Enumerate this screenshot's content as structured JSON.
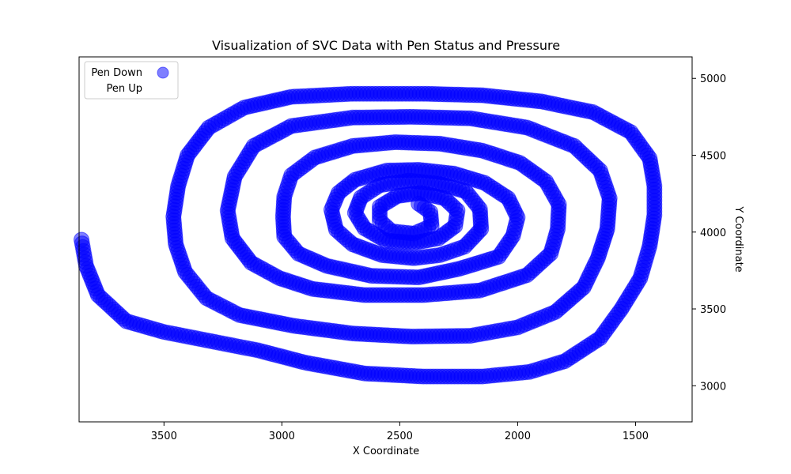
{
  "chart_data": {
    "type": "scatter",
    "title": "Visualization of SVC Data with Pen Status and Pressure",
    "xlabel": "X Coordinate",
    "ylabel": "Y Coordinate",
    "x_axis_inverted": true,
    "y_axis_position": "right",
    "xlim": [
      3860,
      1260
    ],
    "ylim": [
      2765,
      5140
    ],
    "x_ticks": [
      {
        "value": 3500,
        "label": "3500"
      },
      {
        "value": 3000,
        "label": "3000"
      },
      {
        "value": 2500,
        "label": "2500"
      },
      {
        "value": 2000,
        "label": "2000"
      },
      {
        "value": 1500,
        "label": "1500"
      }
    ],
    "y_ticks": [
      {
        "value": 3000,
        "label": "3000"
      },
      {
        "value": 3500,
        "label": "3500"
      },
      {
        "value": 4000,
        "label": "4000"
      },
      {
        "value": 4500,
        "label": "4500"
      },
      {
        "value": 5000,
        "label": "5000"
      }
    ],
    "legend": {
      "placement": "top-left",
      "entries": [
        {
          "label": "Pen Down",
          "color": "#0000ff",
          "marker": "circle"
        },
        {
          "label": "Pen Up",
          "color": "#ff0000",
          "marker": "circle"
        }
      ]
    },
    "series": [
      {
        "name": "Pen Down",
        "color": "#0000ff",
        "trajectory": [
          [
            2420,
            4185
          ],
          [
            2370,
            4130
          ],
          [
            2365,
            4040
          ],
          [
            2440,
            3990
          ],
          [
            2535,
            4005
          ],
          [
            2585,
            4075
          ],
          [
            2585,
            4165
          ],
          [
            2510,
            4235
          ],
          [
            2410,
            4255
          ],
          [
            2310,
            4220
          ],
          [
            2255,
            4140
          ],
          [
            2265,
            4040
          ],
          [
            2335,
            3960
          ],
          [
            2440,
            3930
          ],
          [
            2560,
            3945
          ],
          [
            2650,
            4025
          ],
          [
            2690,
            4125
          ],
          [
            2665,
            4225
          ],
          [
            2585,
            4305
          ],
          [
            2460,
            4335
          ],
          [
            2335,
            4315
          ],
          [
            2220,
            4265
          ],
          [
            2160,
            4150
          ],
          [
            2155,
            4020
          ],
          [
            2225,
            3905
          ],
          [
            2330,
            3850
          ],
          [
            2440,
            3830
          ],
          [
            2575,
            3850
          ],
          [
            2700,
            3920
          ],
          [
            2770,
            4015
          ],
          [
            2790,
            4145
          ],
          [
            2760,
            4255
          ],
          [
            2690,
            4340
          ],
          [
            2555,
            4400
          ],
          [
            2420,
            4405
          ],
          [
            2270,
            4380
          ],
          [
            2140,
            4320
          ],
          [
            2040,
            4220
          ],
          [
            2000,
            4095
          ],
          [
            2020,
            3975
          ],
          [
            2080,
            3840
          ],
          [
            2250,
            3760
          ],
          [
            2420,
            3705
          ],
          [
            2620,
            3715
          ],
          [
            2810,
            3780
          ],
          [
            2930,
            3860
          ],
          [
            2990,
            3970
          ],
          [
            2995,
            4100
          ],
          [
            2990,
            4230
          ],
          [
            2960,
            4370
          ],
          [
            2860,
            4485
          ],
          [
            2700,
            4560
          ],
          [
            2520,
            4585
          ],
          [
            2330,
            4575
          ],
          [
            2150,
            4530
          ],
          [
            1990,
            4450
          ],
          [
            1880,
            4330
          ],
          [
            1825,
            4180
          ],
          [
            1830,
            4020
          ],
          [
            1860,
            3860
          ],
          [
            1960,
            3720
          ],
          [
            2160,
            3620
          ],
          [
            2400,
            3590
          ],
          [
            2650,
            3590
          ],
          [
            2870,
            3630
          ],
          [
            3010,
            3700
          ],
          [
            3130,
            3800
          ],
          [
            3210,
            3960
          ],
          [
            3230,
            4140
          ],
          [
            3200,
            4360
          ],
          [
            3120,
            4560
          ],
          [
            2960,
            4690
          ],
          [
            2700,
            4745
          ],
          [
            2450,
            4750
          ],
          [
            2200,
            4740
          ],
          [
            1960,
            4680
          ],
          [
            1760,
            4560
          ],
          [
            1650,
            4400
          ],
          [
            1610,
            4220
          ],
          [
            1620,
            4020
          ],
          [
            1660,
            3830
          ],
          [
            1720,
            3640
          ],
          [
            1840,
            3480
          ],
          [
            2000,
            3380
          ],
          [
            2200,
            3325
          ],
          [
            2450,
            3320
          ],
          [
            2700,
            3340
          ],
          [
            2950,
            3390
          ],
          [
            3180,
            3460
          ],
          [
            3320,
            3570
          ],
          [
            3410,
            3740
          ],
          [
            3450,
            3920
          ],
          [
            3460,
            4100
          ],
          [
            3440,
            4300
          ],
          [
            3400,
            4500
          ],
          [
            3310,
            4680
          ],
          [
            3160,
            4810
          ],
          [
            2960,
            4880
          ],
          [
            2700,
            4900
          ],
          [
            2400,
            4900
          ],
          [
            2150,
            4890
          ],
          [
            1900,
            4850
          ],
          [
            1680,
            4780
          ],
          [
            1520,
            4650
          ],
          [
            1440,
            4480
          ],
          [
            1420,
            4300
          ],
          [
            1420,
            4110
          ],
          [
            1440,
            3910
          ],
          [
            1480,
            3700
          ],
          [
            1560,
            3500
          ],
          [
            1650,
            3310
          ],
          [
            1800,
            3160
          ],
          [
            1950,
            3090
          ],
          [
            2150,
            3060
          ],
          [
            2400,
            3060
          ],
          [
            2650,
            3080
          ],
          [
            2900,
            3150
          ],
          [
            3100,
            3230
          ],
          [
            3300,
            3290
          ],
          [
            3500,
            3350
          ],
          [
            3660,
            3420
          ],
          [
            3780,
            3590
          ],
          [
            3830,
            3780
          ],
          [
            3850,
            3950
          ]
        ]
      }
    ]
  }
}
